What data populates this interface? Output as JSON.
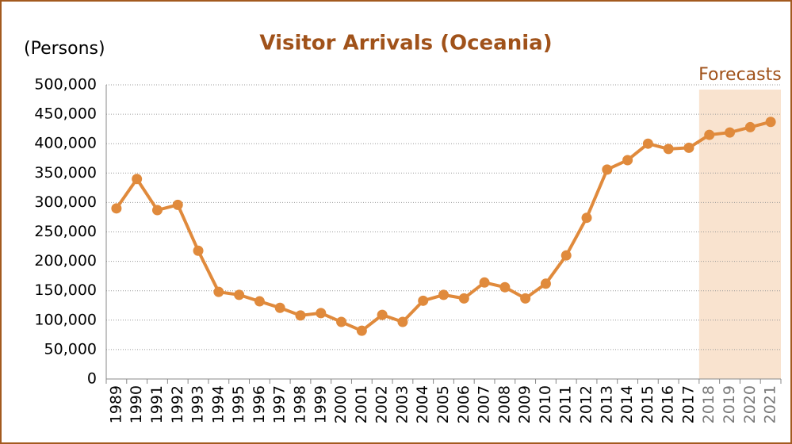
{
  "chart_data": {
    "type": "line",
    "title": "Visitor Arrivals (Oceania)",
    "y_axis_label": "(Persons)",
    "categories": [
      "1989",
      "1990",
      "1991",
      "1992",
      "1993",
      "1994",
      "1995",
      "1996",
      "1997",
      "1998",
      "1999",
      "2000",
      "2001",
      "2002",
      "2003",
      "2004",
      "2005",
      "2006",
      "2007",
      "2008",
      "2009",
      "2010",
      "2011",
      "2012",
      "2013",
      "2014",
      "2015",
      "2016",
      "2017",
      "2018",
      "2019",
      "2020",
      "2021"
    ],
    "series": [
      {
        "name": "Visitor Arrivals",
        "color": "#e08a3c",
        "values": [
          290000,
          340000,
          287000,
          296000,
          218000,
          148000,
          143000,
          132000,
          121000,
          108000,
          112000,
          97000,
          82000,
          109000,
          97000,
          133000,
          143000,
          137000,
          164000,
          156000,
          137000,
          162000,
          210000,
          274000,
          356000,
          372000,
          400000,
          391000,
          393000,
          415000,
          419000,
          428000,
          437000
        ]
      }
    ],
    "ylim": [
      0,
      500000
    ],
    "yticks": [
      0,
      {
        "value": 50000,
        "label": "50,000"
      },
      {
        "value": 100000,
        "label": "100,000"
      },
      {
        "value": 150000,
        "label": "150,000"
      },
      {
        "value": 200000,
        "label": "200,000"
      },
      {
        "value": 250000,
        "label": "250,000"
      },
      {
        "value": 300000,
        "label": "300,000"
      },
      {
        "value": 350000,
        "label": "350,000"
      },
      {
        "value": 400000,
        "label": "400,000"
      },
      {
        "value": 450000,
        "label": "450,000"
      },
      {
        "value": 500000,
        "label": "500,000"
      }
    ],
    "grid": true,
    "shaded_region": {
      "label": "Forecasts",
      "from": "2018",
      "to": "2021",
      "color": "#f9e3cf"
    }
  }
}
